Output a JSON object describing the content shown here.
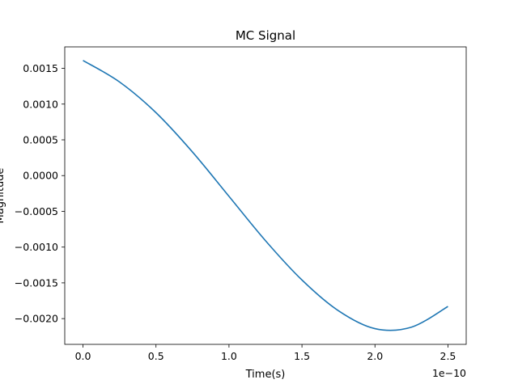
{
  "chart_data": {
    "type": "line",
    "title": "MC Signal",
    "xlabel": "Time(s)",
    "ylabel": "Magnitude",
    "x_offset_text": "1e−10",
    "x_scale": 1e-10,
    "xlim": [
      -0.125,
      2.625
    ],
    "ylim": [
      -0.00236,
      0.0018
    ],
    "x_ticks": [
      0.0,
      0.5,
      1.0,
      1.5,
      2.0,
      2.5
    ],
    "x_tick_labels": [
      "0.0",
      "0.5",
      "1.0",
      "1.5",
      "2.0",
      "2.5"
    ],
    "y_ticks": [
      0.0015,
      0.001,
      0.0005,
      0.0,
      -0.0005,
      -0.001,
      -0.0015,
      -0.002
    ],
    "y_tick_labels": [
      "0.0015",
      "0.0010",
      "0.0005",
      "0.0000",
      "−0.0005",
      "−0.0010",
      "−0.0015",
      "−0.0020"
    ],
    "grid": false,
    "series": [
      {
        "color": "#1f77b4",
        "x": [
          0.0,
          0.25,
          0.5,
          0.75,
          1.0,
          1.25,
          1.5,
          1.75,
          2.0,
          2.25,
          2.5
        ],
        "y": [
          0.00161,
          0.00131,
          0.00088,
          0.00033,
          -0.00029,
          -0.00091,
          -0.00146,
          -0.00189,
          -0.00214,
          -0.00212,
          -0.00183
        ]
      }
    ]
  }
}
